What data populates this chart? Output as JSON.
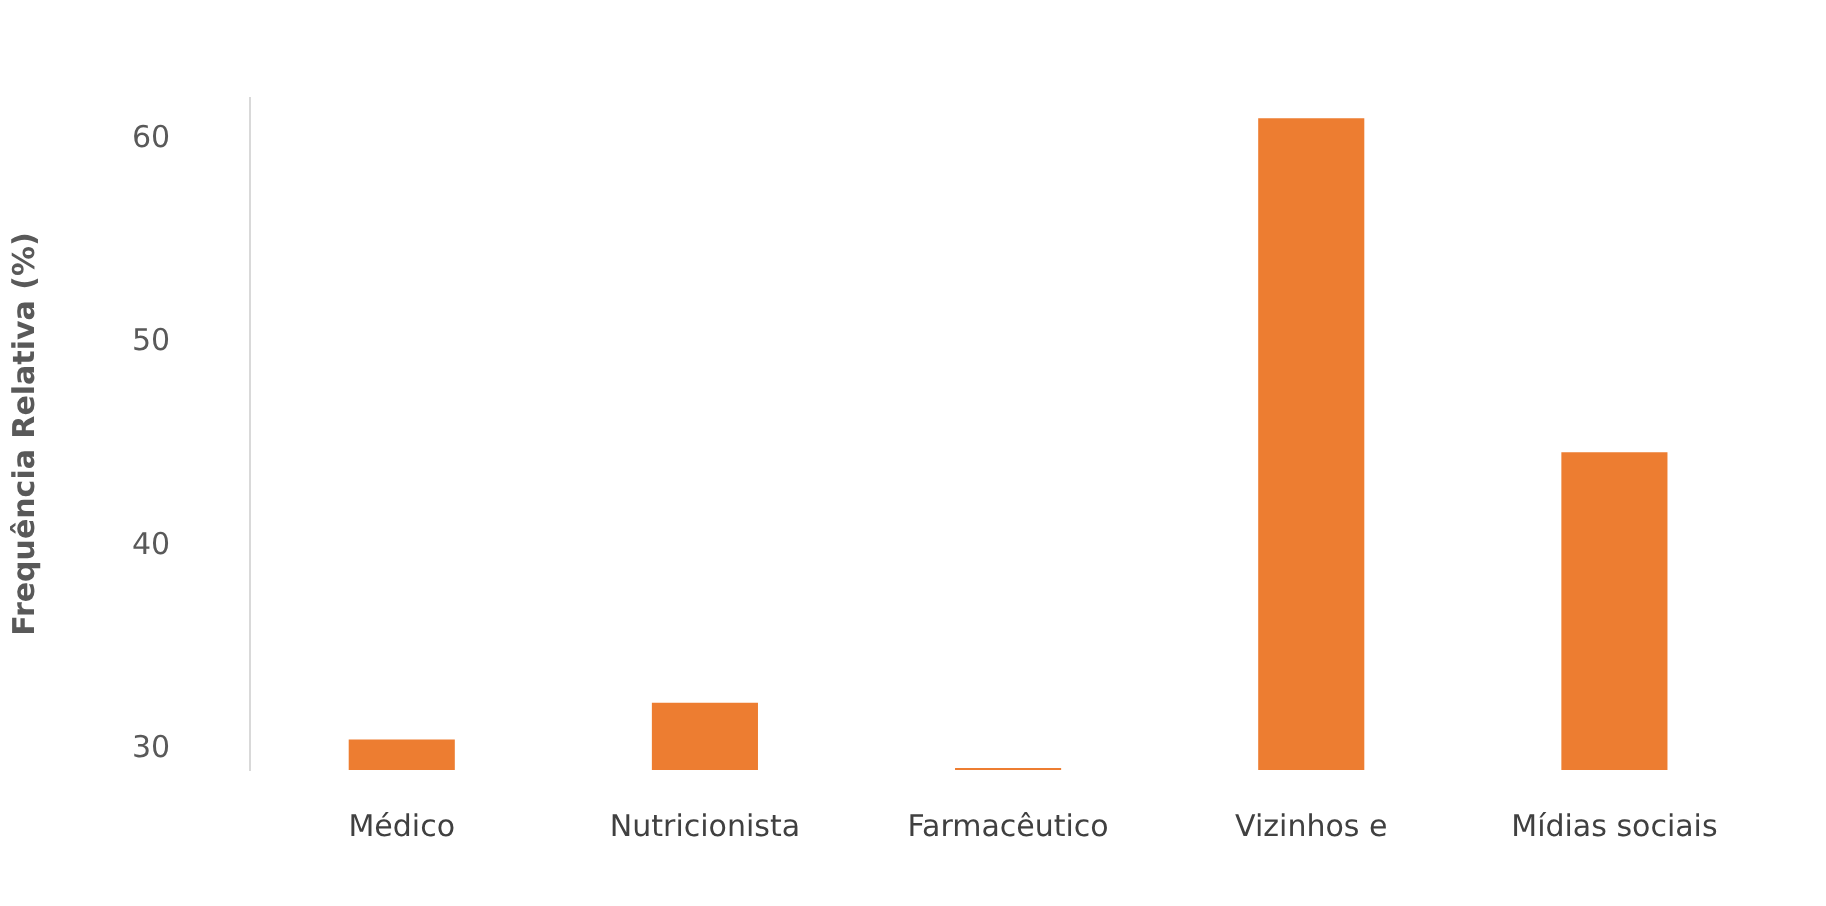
{
  "chart_data": {
    "type": "bar",
    "ylabel": "Frequência Relativa (%)",
    "categories": [
      "Médico",
      "Nutricionista",
      "Farmacêutico",
      "Vizinhos e",
      "Mídias sociais"
    ],
    "values": [
      30.5,
      32.3,
      29.1,
      61,
      44.6
    ],
    "color": "#ed7d31",
    "ylim": [
      29,
      62
    ],
    "yticks": [
      30,
      40,
      50,
      60
    ],
    "grid": false
  }
}
